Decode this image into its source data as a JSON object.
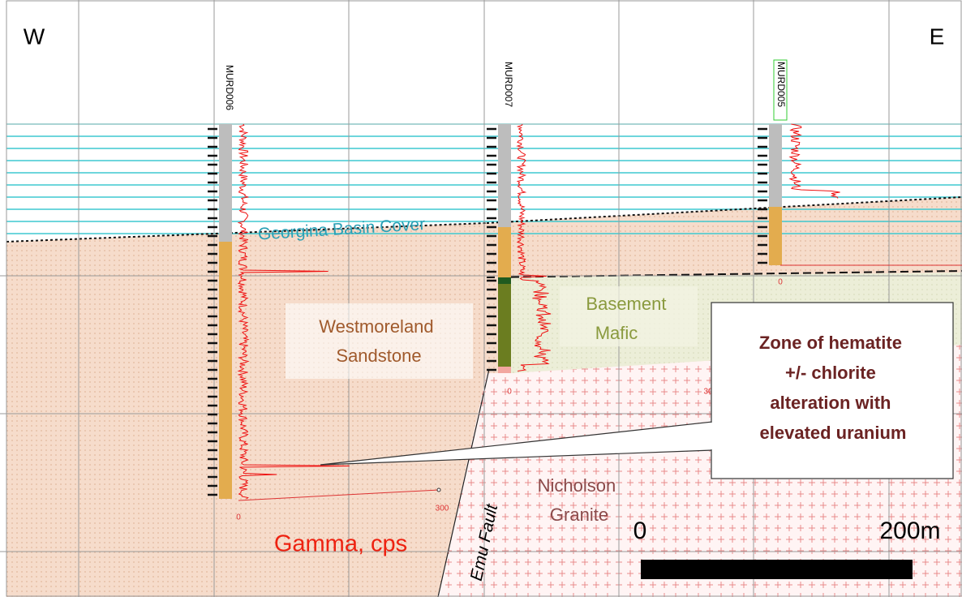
{
  "header": {
    "west": "W",
    "east": "E"
  },
  "wells": [
    {
      "name": "MURD006",
      "scale_min": "0",
      "scale_max": "300"
    },
    {
      "name": "MURD007",
      "scale_min": "0",
      "scale_max": "30"
    },
    {
      "name": "MURD005",
      "scale_min": "0"
    }
  ],
  "units": {
    "cover": "Georgina Basin Cover",
    "sandstone": [
      "Westmoreland",
      "Sandstone"
    ],
    "mafic": [
      "Basement",
      "Mafic"
    ],
    "granite": [
      "Nicholson",
      "Granite"
    ],
    "fault": "Emu Fault"
  },
  "callout": {
    "lines": [
      "Zone of hematite",
      "+/- chlorite",
      "alteration with",
      "elevated uranium"
    ]
  },
  "gamma_label": "Gamma, cps",
  "scale_bar": {
    "start": "0",
    "end": "200m"
  }
}
